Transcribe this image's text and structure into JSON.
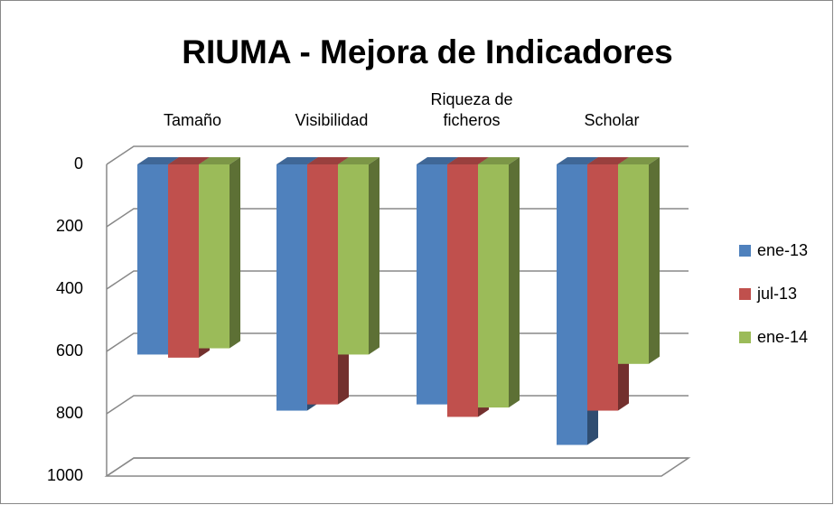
{
  "chart_data": {
    "type": "bar3d",
    "title": "RIUMA - Mejora de Indicadores",
    "categories": [
      "Tamaño",
      "Visibilidad",
      "Riqueza de ficheros",
      "Scholar"
    ],
    "series": [
      {
        "name": "ene-13",
        "color": "#4f81bd",
        "values": [
          610,
          790,
          770,
          900
        ]
      },
      {
        "name": "jul-13",
        "color": "#c0504d",
        "values": [
          620,
          770,
          810,
          790
        ]
      },
      {
        "name": "ene-14",
        "color": "#9bbb59",
        "values": [
          590,
          610,
          780,
          640
        ]
      }
    ],
    "ylim": [
      0,
      1000
    ],
    "yticks": [
      0,
      200,
      400,
      600,
      800,
      1000
    ],
    "y_reversed": true,
    "grid": true,
    "legend": "right"
  }
}
